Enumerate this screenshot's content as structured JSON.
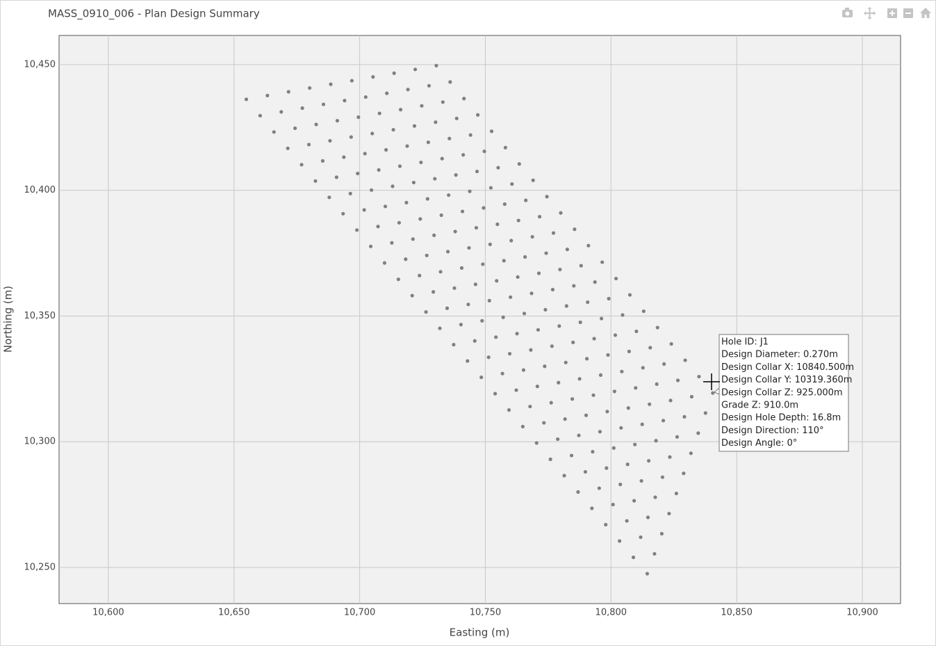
{
  "chart_data": {
    "type": "scatter",
    "title": "MASS_0910_006 - Plan Design Summary",
    "x_label": "Easting (m)",
    "y_label": "Northing (m)",
    "color": "#808080",
    "grid": true,
    "xlim": [
      10580.4,
      10915.2
    ],
    "ylim": [
      10235.6,
      10461.6
    ],
    "xticks": [
      {
        "value": 10600,
        "label": "10,600"
      },
      {
        "value": 10650,
        "label": "10,650"
      },
      {
        "value": 10700,
        "label": "10,700"
      },
      {
        "value": 10750,
        "label": "10,750"
      },
      {
        "value": 10800,
        "label": "10,800"
      },
      {
        "value": 10850,
        "label": "10,850"
      },
      {
        "value": 10900,
        "label": "10,900"
      }
    ],
    "yticks": [
      {
        "value": 10250,
        "label": "10,250"
      },
      {
        "value": 10300,
        "label": "10,300"
      },
      {
        "value": 10350,
        "label": "10,350"
      },
      {
        "value": 10400,
        "label": "10,400"
      },
      {
        "value": 10450,
        "label": "10,450"
      }
    ],
    "x": [
      10654.9,
      10663.3,
      10671.7,
      10680.1,
      10688.5,
      10696.9,
      10705.3,
      10713.7,
      10722.1,
      10730.5,
      10660.4,
      10668.8,
      10677.2,
      10685.6,
      10694.0,
      10702.4,
      10710.8,
      10719.2,
      10727.6,
      10736.0,
      10665.9,
      10674.3,
      10682.7,
      10691.1,
      10699.5,
      10707.9,
      10716.3,
      10724.7,
      10733.1,
      10741.5,
      10671.4,
      10679.8,
      10688.2,
      10696.6,
      10705.0,
      10713.4,
      10721.8,
      10730.2,
      10738.6,
      10747.0,
      10676.9,
      10685.3,
      10693.7,
      10702.1,
      10710.5,
      10718.9,
      10727.3,
      10735.7,
      10744.1,
      10752.5,
      10682.4,
      10690.8,
      10699.2,
      10707.6,
      10716.0,
      10724.4,
      10732.8,
      10741.2,
      10749.6,
      10758.0,
      10687.9,
      10696.3,
      10704.7,
      10713.1,
      10721.5,
      10729.9,
      10738.3,
      10746.7,
      10755.1,
      10763.5,
      10693.4,
      10701.8,
      10710.2,
      10718.6,
      10727.0,
      10735.4,
      10743.8,
      10752.2,
      10760.6,
      10769.0,
      10698.9,
      10707.3,
      10715.7,
      10724.1,
      10732.5,
      10740.9,
      10749.3,
      10757.7,
      10766.1,
      10774.5,
      10704.4,
      10712.8,
      10721.2,
      10729.6,
      10738.0,
      10746.4,
      10754.8,
      10763.2,
      10771.6,
      10780.0,
      10709.9,
      10718.3,
      10726.7,
      10735.1,
      10743.5,
      10751.9,
      10760.3,
      10768.7,
      10777.1,
      10785.5,
      10715.4,
      10723.8,
      10732.2,
      10740.6,
      10749.0,
      10757.4,
      10765.8,
      10774.2,
      10782.6,
      10791.0,
      10720.9,
      10729.3,
      10737.7,
      10746.1,
      10754.5,
      10762.9,
      10771.3,
      10779.7,
      10788.1,
      10796.5,
      10726.4,
      10734.8,
      10743.2,
      10751.6,
      10760.0,
      10768.4,
      10776.8,
      10785.2,
      10793.6,
      10802.0,
      10731.9,
      10740.3,
      10748.7,
      10757.1,
      10765.5,
      10773.9,
      10782.3,
      10790.7,
      10799.1,
      10807.5,
      10737.4,
      10745.8,
      10754.2,
      10762.6,
      10771.0,
      10779.4,
      10787.8,
      10796.2,
      10804.6,
      10813.0,
      10742.9,
      10751.3,
      10759.7,
      10768.1,
      10776.5,
      10784.9,
      10793.3,
      10801.7,
      10810.1,
      10818.5,
      10748.4,
      10756.8,
      10765.2,
      10773.6,
      10782.0,
      10790.4,
      10798.8,
      10807.2,
      10815.6,
      10824.0,
      10753.9,
      10762.3,
      10770.7,
      10779.1,
      10787.5,
      10795.9,
      10804.3,
      10812.7,
      10821.1,
      10829.5,
      10759.4,
      10767.8,
      10776.2,
      10784.6,
      10793.0,
      10801.4,
      10809.8,
      10818.2,
      10826.6,
      10835.0,
      10764.9,
      10773.3,
      10781.7,
      10790.1,
      10798.5,
      10806.9,
      10815.3,
      10823.7,
      10832.1,
      10840.5,
      10770.4,
      10778.8,
      10787.2,
      10795.6,
      10804.0,
      10812.4,
      10820.8,
      10829.2,
      10837.6,
      10775.9,
      10784.3,
      10792.7,
      10801.1,
      10809.5,
      10817.9,
      10826.3,
      10834.7,
      10781.4,
      10789.8,
      10798.2,
      10806.6,
      10815.0,
      10823.4,
      10831.8,
      10786.9,
      10795.3,
      10803.7,
      10812.1,
      10820.5,
      10828.9,
      10792.4,
      10800.8,
      10809.2,
      10817.6,
      10826.0,
      10797.9,
      10806.3,
      10814.7,
      10823.1,
      10803.4,
      10811.8,
      10820.2,
      10808.9,
      10817.3,
      10814.4
    ],
    "y": [
      10436.2,
      10437.7,
      10439.2,
      10440.7,
      10442.2,
      10443.6,
      10445.1,
      10446.6,
      10448.1,
      10449.6,
      10429.7,
      10431.2,
      10432.7,
      10434.2,
      10435.7,
      10437.1,
      10438.6,
      10440.1,
      10441.6,
      10443.1,
      10423.2,
      10424.7,
      10426.2,
      10427.7,
      10429.1,
      10430.6,
      10432.1,
      10433.6,
      10435.1,
      10436.5,
      10416.7,
      10418.2,
      10419.7,
      10421.2,
      10422.6,
      10424.1,
      10425.6,
      10427.1,
      10428.6,
      10430.0,
      10410.2,
      10411.7,
      10413.2,
      10414.6,
      10416.1,
      10417.6,
      10419.1,
      10420.6,
      10422.0,
      10423.5,
      10403.7,
      10405.2,
      10406.7,
      10408.1,
      10409.6,
      10411.1,
      10412.6,
      10414.1,
      10415.5,
      10417.0,
      10397.2,
      10398.7,
      10400.1,
      10401.6,
      10403.1,
      10404.6,
      10406.1,
      10407.5,
      10409.0,
      10410.5,
      10390.7,
      10392.2,
      10393.6,
      10395.1,
      10396.6,
      10398.1,
      10399.6,
      10401.0,
      10402.5,
      10404.0,
      10384.2,
      10385.6,
      10387.1,
      10388.6,
      10390.1,
      10391.6,
      10393.0,
      10394.5,
      10396.0,
      10397.5,
      10377.7,
      10379.1,
      10380.6,
      10382.1,
      10383.6,
      10385.1,
      10386.5,
      10388.0,
      10389.5,
      10391.0,
      10371.1,
      10372.6,
      10374.1,
      10375.6,
      10377.1,
      10378.5,
      10380.0,
      10381.5,
      10383.0,
      10384.5,
      10364.6,
      10366.1,
      10367.6,
      10369.1,
      10370.6,
      10372.0,
      10373.5,
      10375.0,
      10376.5,
      10378.0,
      10358.1,
      10359.6,
      10361.1,
      10362.6,
      10364.0,
      10365.5,
      10367.0,
      10368.5,
      10370.0,
      10371.4,
      10351.6,
      10353.1,
      10354.6,
      10356.1,
      10357.5,
      10359.0,
      10360.5,
      10362.0,
      10363.5,
      10364.9,
      10345.1,
      10346.6,
      10348.1,
      10349.5,
      10351.0,
      10352.5,
      10354.0,
      10355.5,
      10356.9,
      10358.4,
      10338.6,
      10340.1,
      10341.6,
      10343.0,
      10344.5,
      10346.0,
      10347.5,
      10349.0,
      10350.4,
      10351.9,
      10332.1,
      10333.6,
      10335.0,
      10336.5,
      10338.0,
      10339.5,
      10341.0,
      10342.4,
      10343.9,
      10345.4,
      10325.6,
      10327.1,
      10328.5,
      10330.0,
      10331.5,
      10333.0,
      10334.5,
      10335.9,
      10337.4,
      10338.9,
      10319.1,
      10320.5,
      10322.0,
      10323.5,
      10325.0,
      10326.5,
      10327.9,
      10329.4,
      10330.9,
      10332.4,
      10312.6,
      10314.0,
      10315.5,
      10317.0,
      10318.5,
      10320.0,
      10321.4,
      10322.9,
      10324.4,
      10325.9,
      10306.0,
      10307.5,
      10309.0,
      10310.5,
      10312.0,
      10313.4,
      10314.9,
      10316.4,
      10317.9,
      10319.36,
      10299.5,
      10301.0,
      10302.5,
      10304.0,
      10305.5,
      10306.9,
      10308.4,
      10309.9,
      10311.4,
      10293.0,
      10294.5,
      10296.0,
      10297.5,
      10298.9,
      10300.4,
      10301.9,
      10303.4,
      10286.5,
      10288.0,
      10289.5,
      10291.0,
      10292.4,
      10293.9,
      10295.4,
      10280.0,
      10281.5,
      10283.0,
      10284.4,
      10285.9,
      10287.4,
      10273.5,
      10275.0,
      10276.5,
      10277.9,
      10279.4,
      10267.0,
      10268.5,
      10269.9,
      10271.4,
      10260.5,
      10262.0,
      10263.4,
      10254.0,
      10255.4,
      10247.5
    ],
    "tooltip": [
      "Hole ID: J1",
      "Design Diameter: 0.270m",
      "Design Collar X: 10840.500m",
      "Design Collar Y: 10319.360m",
      "Design Collar Z: 925.000m",
      "Grade Z: 910.0m",
      "Design Hole Depth: 16.8m",
      "Design Direction: 110°",
      "Design Angle: 0°"
    ]
  }
}
